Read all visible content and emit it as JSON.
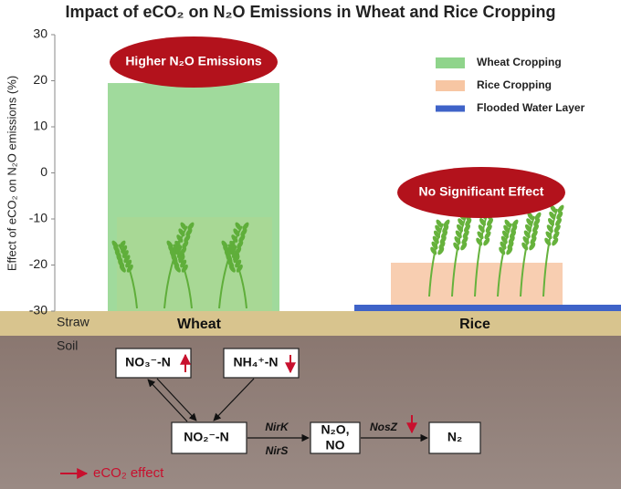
{
  "chart_data": {
    "type": "bar",
    "title": "Impact of eCO₂ on N₂O Emissions in Wheat and Rice Cropping",
    "y_label": "Effect of eCO₂ on N₂O emissions (%)",
    "categories": [
      "Wheat",
      "Rice"
    ],
    "series": [
      {
        "name": "Wheat Cropping",
        "color": "#8fd48b",
        "values": [
          19.5,
          null
        ]
      },
      {
        "name": "Rice Cropping",
        "color": "#f7c6a3",
        "values": [
          null,
          -19.5
        ]
      }
    ],
    "extra_legend": {
      "name": "Flooded Water Layer",
      "color": "#3f63c8"
    },
    "annotations": [
      "Higher N₂O Emissions",
      "No Significant Effect"
    ],
    "layers": [
      "Straw",
      "Soil"
    ],
    "ylim": [
      -30,
      30
    ],
    "yticks": [
      30,
      20,
      10,
      0,
      -10,
      -20,
      -30
    ]
  },
  "diagram": {
    "nodes": [
      [
        "NO₃⁻-N"
      ],
      [
        "NH₄⁺-N"
      ],
      [
        "NO₂⁻-N"
      ],
      [
        "N₂O,",
        "NO"
      ],
      [
        "N₂"
      ]
    ],
    "enzymes": [
      "NirK",
      "NirS",
      "NosZ"
    ],
    "legend": "eCO₂ effect"
  }
}
